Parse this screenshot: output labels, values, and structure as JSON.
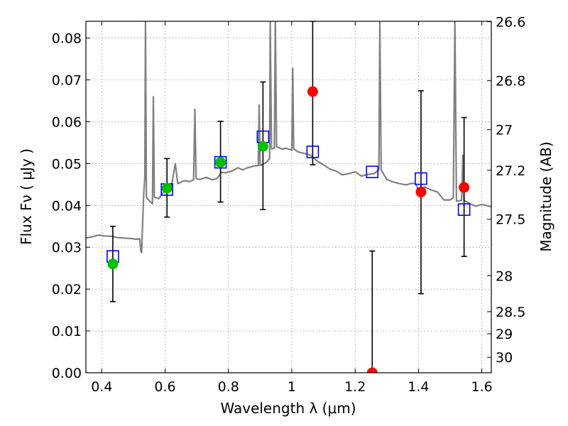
{
  "chart_data": {
    "type": "scatter",
    "xlabel": "Wavelength  λ (μm)",
    "ylabel": "Flux  Fν  ( μJy )",
    "ylabel_right": "Magnitude (AB)",
    "xlim": [
      0.35,
      1.63
    ],
    "ylim": [
      0.0,
      0.084
    ],
    "grid": true,
    "x_ticks": [
      0.4,
      0.6,
      0.8,
      1.0,
      1.2,
      1.4,
      1.6
    ],
    "x_tick_labels": [
      "0.4",
      "0.6",
      "0.8",
      "1",
      "1.2",
      "1.4",
      "1.6"
    ],
    "y_ticks": [
      0.0,
      0.01,
      0.02,
      0.03,
      0.04,
      0.05,
      0.06,
      0.07,
      0.08
    ],
    "y_tick_labels": [
      "0.00",
      "0.01",
      "0.02",
      "0.03",
      "0.04",
      "0.05",
      "0.06",
      "0.07",
      "0.08"
    ],
    "right_ticks": [
      {
        "label": "26.6",
        "flux": 0.0839
      },
      {
        "label": "26.8",
        "flux": 0.0698
      },
      {
        "label": "27",
        "flux": 0.0581
      },
      {
        "label": "27.2",
        "flux": 0.0484
      },
      {
        "label": "27.5",
        "flux": 0.0367
      },
      {
        "label": "28",
        "flux": 0.0232
      },
      {
        "label": "28.5",
        "flux": 0.0146
      },
      {
        "label": "29",
        "flux": 0.0093
      },
      {
        "label": "30",
        "flux": 0.0037
      }
    ],
    "colors": {
      "spectrum": "#808080",
      "model": "#0000ff",
      "detected": "#00c000",
      "upper": "#ff0000",
      "errorbar": "#000000"
    },
    "spectrum": [
      [
        0.35,
        0.0322
      ],
      [
        0.37,
        0.0325
      ],
      [
        0.39,
        0.0329
      ],
      [
        0.41,
        0.0327
      ],
      [
        0.43,
        0.0326
      ],
      [
        0.45,
        0.0323
      ],
      [
        0.47,
        0.0322
      ],
      [
        0.49,
        0.0321
      ],
      [
        0.51,
        0.0319
      ],
      [
        0.52,
        0.032
      ],
      [
        0.523,
        0.0292
      ],
      [
        0.526,
        0.0287
      ],
      [
        0.53,
        0.038
      ],
      [
        0.533,
        0.0432
      ],
      [
        0.536,
        0.0468
      ],
      [
        0.538,
        0.084
      ],
      [
        0.541,
        0.042
      ],
      [
        0.55,
        0.0411
      ],
      [
        0.56,
        0.0404
      ],
      [
        0.563,
        0.066
      ],
      [
        0.566,
        0.042
      ],
      [
        0.58,
        0.0416
      ],
      [
        0.6,
        0.0438
      ],
      [
        0.62,
        0.0445
      ],
      [
        0.632,
        0.05
      ],
      [
        0.64,
        0.0452
      ],
      [
        0.66,
        0.0459
      ],
      [
        0.68,
        0.0457
      ],
      [
        0.69,
        0.0462
      ],
      [
        0.694,
        0.063
      ],
      [
        0.698,
        0.0464
      ],
      [
        0.71,
        0.0462
      ],
      [
        0.73,
        0.0467
      ],
      [
        0.75,
        0.0461
      ],
      [
        0.765,
        0.0465
      ],
      [
        0.778,
        0.0479
      ],
      [
        0.79,
        0.0478
      ],
      [
        0.81,
        0.0482
      ],
      [
        0.83,
        0.049
      ],
      [
        0.845,
        0.0485
      ],
      [
        0.86,
        0.049
      ],
      [
        0.88,
        0.0494
      ],
      [
        0.894,
        0.0495
      ],
      [
        0.897,
        0.064
      ],
      [
        0.9,
        0.0495
      ],
      [
        0.92,
        0.0503
      ],
      [
        0.93,
        0.0512
      ],
      [
        0.932,
        0.084
      ],
      [
        0.936,
        0.0535
      ],
      [
        0.945,
        0.0537
      ],
      [
        0.948,
        0.084
      ],
      [
        0.952,
        0.054
      ],
      [
        0.96,
        0.0538
      ],
      [
        0.97,
        0.0534
      ],
      [
        0.98,
        0.0537
      ],
      [
        1.0,
        0.0532
      ],
      [
        1.003,
        0.0728
      ],
      [
        1.006,
        0.0535
      ],
      [
        1.02,
        0.0528
      ],
      [
        1.04,
        0.0524
      ],
      [
        1.06,
        0.052
      ],
      [
        1.08,
        0.0506
      ],
      [
        1.1,
        0.0497
      ],
      [
        1.12,
        0.0487
      ],
      [
        1.14,
        0.0482
      ],
      [
        1.16,
        0.0473
      ],
      [
        1.18,
        0.0476
      ],
      [
        1.2,
        0.048
      ],
      [
        1.22,
        0.047
      ],
      [
        1.24,
        0.0474
      ],
      [
        1.26,
        0.0476
      ],
      [
        1.275,
        0.0485
      ],
      [
        1.278,
        0.084
      ],
      [
        1.282,
        0.0485
      ],
      [
        1.3,
        0.0462
      ],
      [
        1.32,
        0.0456
      ],
      [
        1.34,
        0.0452
      ],
      [
        1.36,
        0.0449
      ],
      [
        1.38,
        0.0453
      ],
      [
        1.39,
        0.0452
      ],
      [
        1.4,
        0.0437
      ],
      [
        1.42,
        0.0444
      ],
      [
        1.44,
        0.0437
      ],
      [
        1.46,
        0.0432
      ],
      [
        1.48,
        0.0413
      ],
      [
        1.5,
        0.0413
      ],
      [
        1.51,
        0.0418
      ],
      [
        1.515,
        0.084
      ],
      [
        1.52,
        0.041
      ],
      [
        1.536,
        0.0412
      ],
      [
        1.54,
        0.052
      ],
      [
        1.544,
        0.0412
      ],
      [
        1.56,
        0.0405
      ],
      [
        1.58,
        0.0398
      ],
      [
        1.6,
        0.0402
      ],
      [
        1.63,
        0.0397
      ]
    ],
    "model_photometry": [
      {
        "x": 0.435,
        "y": 0.0278
      },
      {
        "x": 0.606,
        "y": 0.0438
      },
      {
        "x": 0.775,
        "y": 0.0503
      },
      {
        "x": 0.909,
        "y": 0.0564
      },
      {
        "x": 1.066,
        "y": 0.0528
      },
      {
        "x": 1.254,
        "y": 0.048
      },
      {
        "x": 1.408,
        "y": 0.0464
      },
      {
        "x": 1.544,
        "y": 0.039
      }
    ],
    "detected": [
      {
        "x": 0.435,
        "y": 0.026,
        "err_low": 0.017,
        "err_high": 0.035
      },
      {
        "x": 0.606,
        "y": 0.0441,
        "err_low": 0.0372,
        "err_high": 0.0512
      },
      {
        "x": 0.775,
        "y": 0.0503,
        "err_low": 0.0408,
        "err_high": 0.0601
      },
      {
        "x": 0.909,
        "y": 0.0541,
        "err_low": 0.039,
        "err_high": 0.0695
      }
    ],
    "non_detected": [
      {
        "x": 1.066,
        "y": 0.0672,
        "err_low": 0.0497,
        "err_high": 0.084
      },
      {
        "x": 1.254,
        "y": 0.0,
        "err_low": 0.0,
        "err_high": 0.0291
      },
      {
        "x": 1.408,
        "y": 0.0432,
        "err_low": 0.0189,
        "err_high": 0.0674
      },
      {
        "x": 1.544,
        "y": 0.0443,
        "err_low": 0.0278,
        "err_high": 0.061
      }
    ]
  }
}
